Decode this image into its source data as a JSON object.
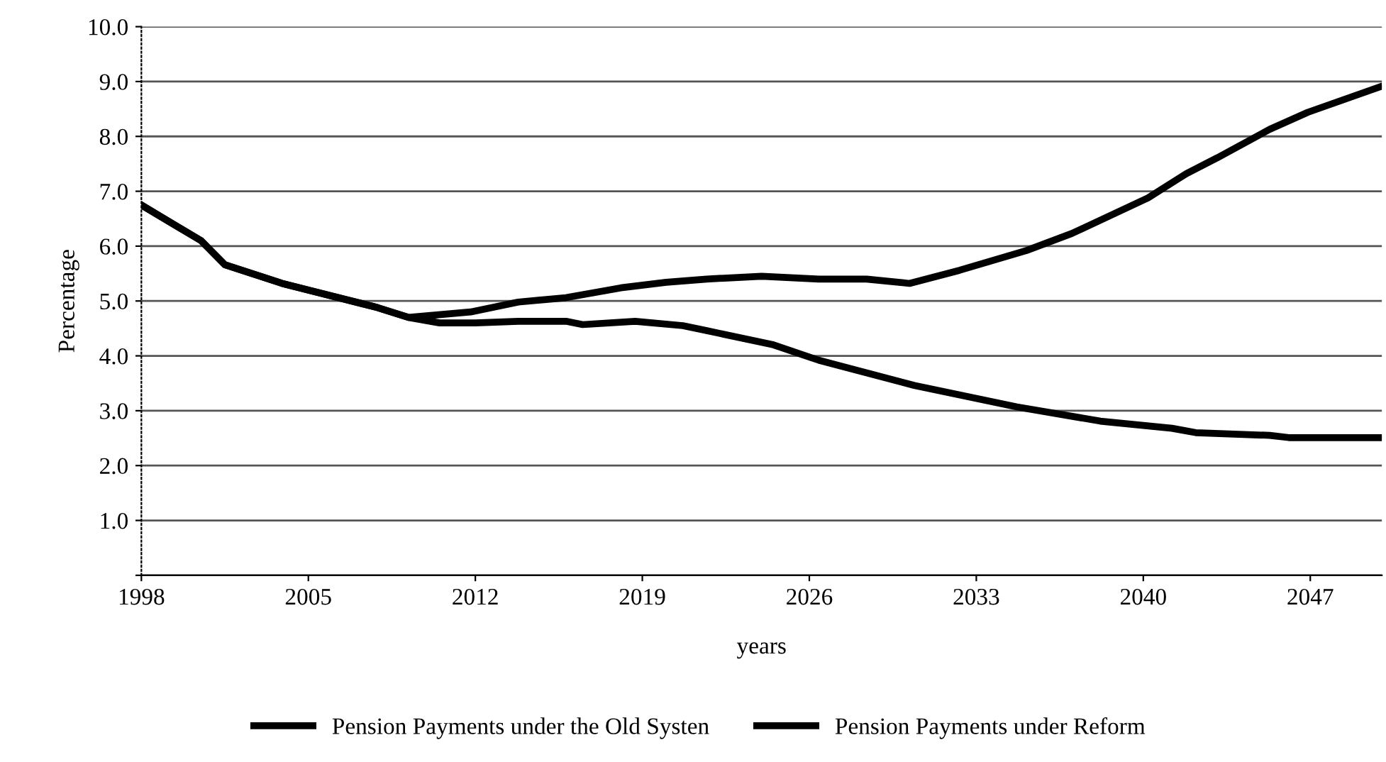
{
  "chart_data": {
    "type": "line",
    "xlabel": "years",
    "ylabel": "Percentage",
    "series": [
      {
        "name": "Pension Payments under the Old Systen",
        "color": "#000000",
        "x": [
          1998,
          2000.5,
          2001.5,
          2003.9,
          2005.9,
          2007.9,
          2009.2,
          2011.8,
          2013.8,
          2015.8,
          2018.1,
          2020,
          2021.7,
          2024,
          2026.4,
          2028.4,
          2030.2,
          2032.3,
          2035.1,
          2037,
          2040.2,
          2041.8,
          2043.1,
          2045.3,
          2046.9,
          2049.9
        ],
        "values": [
          6.75,
          6.1,
          5.66,
          5.32,
          5.1,
          4.88,
          4.7,
          4.8,
          4.98,
          5.06,
          5.24,
          5.34,
          5.4,
          5.45,
          5.4,
          5.4,
          5.32,
          5.56,
          5.92,
          6.23,
          6.88,
          7.32,
          7.61,
          8.13,
          8.44,
          8.9
        ]
      },
      {
        "name": "Pension Payments under Reform",
        "color": "#000000",
        "x": [
          1998,
          2000.5,
          2001.5,
          2003.9,
          2005.9,
          2007.9,
          2009.2,
          2010.5,
          2012,
          2013.8,
          2015.8,
          2016.5,
          2018.7,
          2020.7,
          2021.7,
          2024.5,
          2026.4,
          2030.4,
          2034.7,
          2038.2,
          2041.2,
          2042.2,
          2045.3,
          2046.1,
          2049.9
        ],
        "values": [
          6.75,
          6.1,
          5.66,
          5.32,
          5.1,
          4.88,
          4.7,
          4.6,
          4.6,
          4.63,
          4.63,
          4.57,
          4.63,
          4.55,
          4.46,
          4.2,
          3.92,
          3.46,
          3.07,
          2.81,
          2.68,
          2.6,
          2.55,
          2.51,
          2.51
        ]
      }
    ],
    "xlim": [
      1998,
      2050
    ],
    "xticks": [
      1998,
      2005,
      2012,
      2019,
      2026,
      2033,
      2040,
      2047
    ],
    "ylim": [
      0,
      10
    ],
    "yticks": [
      {
        "value": 0,
        "label": null
      },
      {
        "value": 1,
        "label": "1.0"
      },
      {
        "value": 2,
        "label": "2.0"
      },
      {
        "value": 3,
        "label": "3.0"
      },
      {
        "value": 4,
        "label": "4.0"
      },
      {
        "value": 5,
        "label": "5.0"
      },
      {
        "value": 6,
        "label": "6.0"
      },
      {
        "value": 7,
        "label": "7.0"
      },
      {
        "value": 8,
        "label": "8.0"
      },
      {
        "value": 9,
        "label": "9.0"
      },
      {
        "value": 10,
        "label": "10.0"
      }
    ],
    "grid": "y",
    "legend": "bottom",
    "line_style": "solid",
    "marker": "none"
  }
}
